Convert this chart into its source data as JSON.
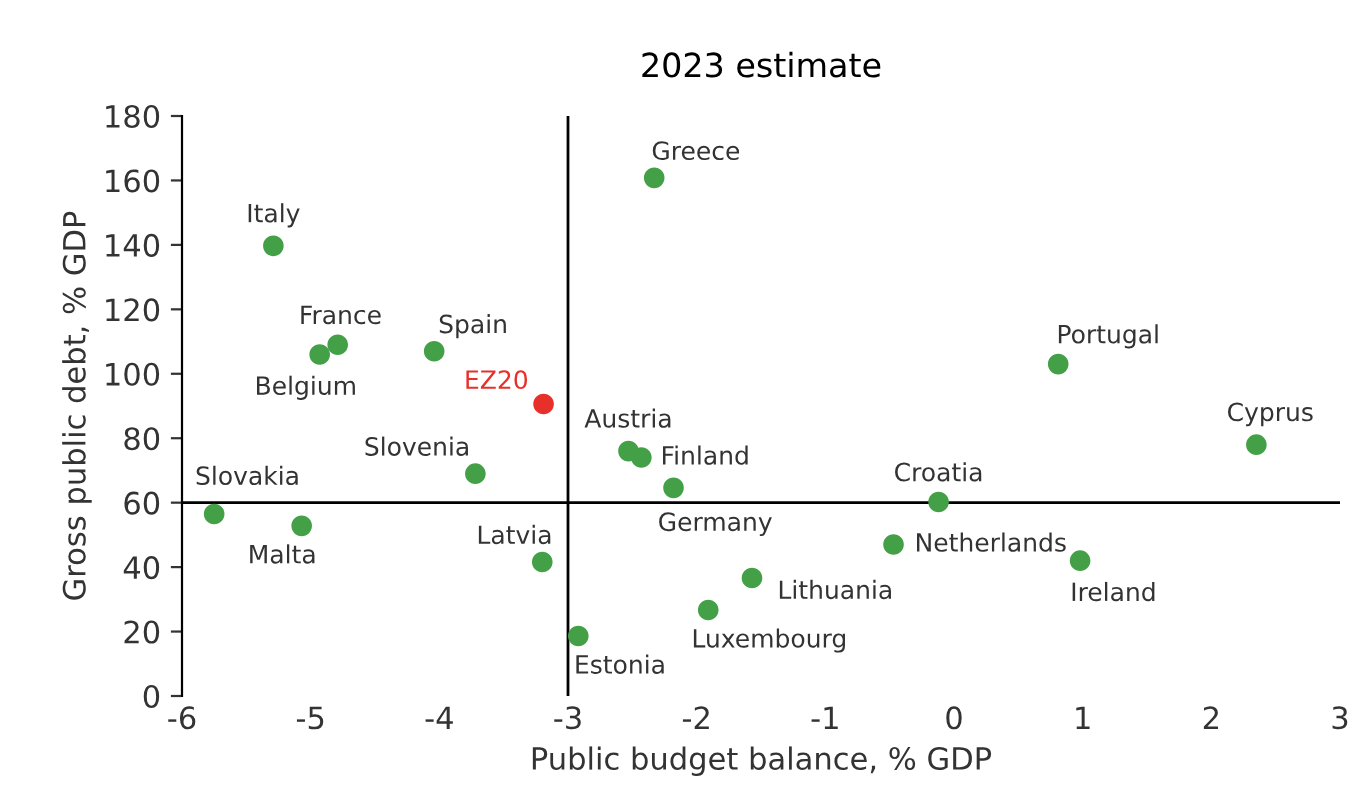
{
  "chart_data": {
    "type": "scatter",
    "title": "2023 estimate",
    "xlabel": "Public budget balance, % GDP",
    "ylabel": "Gross public debt, % GDP",
    "x": [
      -5.29,
      -4.79,
      -4.93,
      -4.04,
      -3.19,
      -2.33,
      -2.53,
      -2.43,
      -2.18,
      -3.72,
      -5.75,
      -5.07,
      -3.2,
      -2.92,
      -1.91,
      -1.57,
      -0.47,
      -0.12,
      0.81,
      0.98,
      2.35
    ],
    "values": [
      139.7,
      109,
      106,
      107,
      90.6,
      160.8,
      76,
      74,
      64.6,
      69,
      56.5,
      52.8,
      41.6,
      18.6,
      26.7,
      36.6,
      47,
      60.2,
      103,
      42,
      78
    ],
    "color": "#43a047",
    "colors": [
      "#43a047",
      "#43a047",
      "#43a047",
      "#43a047",
      "#e8302a",
      "#43a047",
      "#43a047",
      "#43a047",
      "#43a047",
      "#43a047",
      "#43a047",
      "#43a047",
      "#43a047",
      "#43a047",
      "#43a047",
      "#43a047",
      "#43a047",
      "#43a047",
      "#43a047",
      "#43a047",
      "#43a047"
    ],
    "annotations": [
      {
        "text": "Italy",
        "x": -5.29,
        "y": 139.7
      },
      {
        "text": "France",
        "x": -4.79,
        "y": 109
      },
      {
        "text": "Belgium",
        "x": -4.93,
        "y": 106
      },
      {
        "text": "Spain",
        "x": -4.04,
        "y": 107
      },
      {
        "text": "EZ20",
        "x": -3.19,
        "y": 90.6
      },
      {
        "text": "Greece",
        "x": -2.33,
        "y": 160.8
      },
      {
        "text": "Austria",
        "x": -2.53,
        "y": 76
      },
      {
        "text": "Finland",
        "x": -2.43,
        "y": 74
      },
      {
        "text": "Germany",
        "x": -2.18,
        "y": 64.6
      },
      {
        "text": "Slovenia",
        "x": -3.72,
        "y": 69
      },
      {
        "text": "Slovakia",
        "x": -5.75,
        "y": 56.5
      },
      {
        "text": "Malta",
        "x": -5.07,
        "y": 52.8
      },
      {
        "text": "Latvia",
        "x": -3.2,
        "y": 41.6
      },
      {
        "text": "Estonia",
        "x": -2.92,
        "y": 18.6
      },
      {
        "text": "Luxembourg",
        "x": -1.91,
        "y": 26.7
      },
      {
        "text": "Lithuania",
        "x": -1.57,
        "y": 36.6
      },
      {
        "text": "Netherlands",
        "x": -0.47,
        "y": 47
      },
      {
        "text": "Croatia",
        "x": -0.12,
        "y": 60.2
      },
      {
        "text": "Portugal",
        "x": 0.81,
        "y": 103
      },
      {
        "text": "Ireland",
        "x": 0.98,
        "y": 42
      },
      {
        "text": "Cyprus",
        "x": 2.35,
        "y": 78
      }
    ],
    "ref_lines": [
      {
        "axis": "x",
        "value": -3,
        "color": "#000000"
      },
      {
        "axis": "y",
        "value": 60,
        "color": "#000000"
      }
    ],
    "xlim": [
      -6,
      3
    ],
    "xticks": [
      -6,
      -5,
      -4,
      -3,
      -2,
      -1,
      0,
      1,
      2,
      3
    ],
    "ylim": [
      0,
      180
    ],
    "yticks": [
      0,
      20,
      40,
      60,
      80,
      100,
      120,
      140,
      160,
      180
    ],
    "grid": false,
    "legend": false,
    "marker": "circle"
  }
}
